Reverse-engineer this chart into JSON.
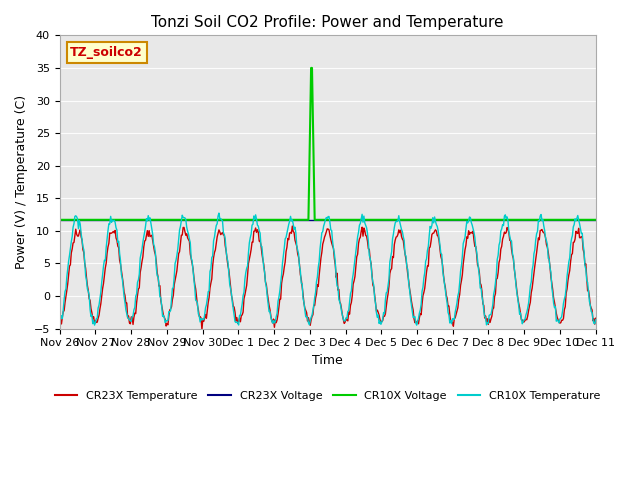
{
  "title": "Tonzi Soil CO2 Profile: Power and Temperature",
  "xlabel": "Time",
  "ylabel": "Power (V) / Temperature (C)",
  "ylim": [
    -5,
    40
  ],
  "yticks": [
    -5,
    0,
    5,
    10,
    15,
    20,
    25,
    30,
    35,
    40
  ],
  "xlim": [
    0,
    15
  ],
  "xtick_labels": [
    "Nov 26",
    "Nov 27",
    "Nov 28",
    "Nov 29",
    "Nov 30",
    "Dec 1",
    "Dec 2",
    "Dec 3",
    "Dec 4",
    "Dec 5",
    "Dec 6",
    "Dec 7",
    "Dec 8",
    "Dec 9",
    "Dec 10",
    "Dec 11"
  ],
  "xtick_positions": [
    0,
    1,
    2,
    3,
    4,
    5,
    6,
    7,
    8,
    9,
    10,
    11,
    12,
    13,
    14,
    15
  ],
  "cr23x_temp_color": "#cc0000",
  "cr23x_volt_color": "#000080",
  "cr10x_volt_color": "#00cc00",
  "cr10x_temp_color": "#00cccc",
  "hline_value": 11.7,
  "hline_color": "#00bb00",
  "annotation_text": "TZ_soilco2",
  "annotation_box_color": "#ffffcc",
  "annotation_box_edge": "#cc8800",
  "background_color": "#e8e8e8",
  "plot_bg_color": "#e8e8e8"
}
